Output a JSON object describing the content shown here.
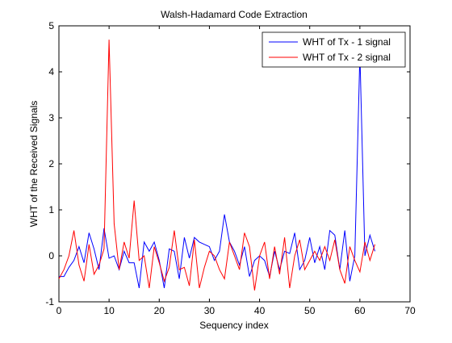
{
  "chart_data": {
    "type": "line",
    "title": "Walsh-Hadamard Code Extraction",
    "xlabel": "Sequency index",
    "ylabel": "WHT of the Received Signals",
    "xlim": [
      0,
      70
    ],
    "ylim": [
      -1,
      5
    ],
    "xticks": [
      0,
      10,
      20,
      30,
      40,
      50,
      60,
      70
    ],
    "yticks": [
      -1,
      0,
      1,
      2,
      3,
      4,
      5
    ],
    "xtick_labels": [
      "0",
      "10",
      "20",
      "30",
      "40",
      "50",
      "60",
      "70"
    ],
    "ytick_labels": [
      "-1",
      "0",
      "1",
      "2",
      "3",
      "4",
      "5"
    ],
    "grid": false,
    "legend_position": "top-right",
    "x": [
      0,
      1,
      2,
      3,
      4,
      5,
      6,
      7,
      8,
      9,
      10,
      11,
      12,
      13,
      14,
      15,
      16,
      17,
      18,
      19,
      20,
      21,
      22,
      23,
      24,
      25,
      26,
      27,
      28,
      29,
      30,
      31,
      32,
      33,
      34,
      35,
      36,
      37,
      38,
      39,
      40,
      41,
      42,
      43,
      44,
      45,
      46,
      47,
      48,
      49,
      50,
      51,
      52,
      53,
      54,
      55,
      56,
      57,
      58,
      59,
      60,
      61,
      62,
      63
    ],
    "series": [
      {
        "name": "WHT of Tx - 1 signal",
        "color": "#0000ff",
        "values": [
          -0.45,
          -0.45,
          -0.25,
          -0.1,
          0.2,
          -0.15,
          0.5,
          0.15,
          -0.3,
          0.6,
          -0.05,
          0.0,
          -0.3,
          0.1,
          -0.15,
          -0.15,
          -0.7,
          0.3,
          0.1,
          0.3,
          -0.1,
          -0.7,
          0.15,
          0.1,
          -0.5,
          0.4,
          -0.05,
          0.4,
          0.3,
          0.25,
          0.2,
          -0.1,
          0.1,
          0.9,
          0.3,
          0.1,
          -0.2,
          0.2,
          -0.45,
          -0.1,
          0.0,
          -0.1,
          -0.45,
          0.1,
          -0.3,
          0.1,
          0.05,
          0.5,
          -0.3,
          -0.1,
          0.4,
          -0.15,
          0.2,
          -0.3,
          0.55,
          0.45,
          -0.3,
          0.55,
          -0.55,
          0.0,
          4.4,
          0.0,
          0.45,
          0.1
        ]
      },
      {
        "name": "WHT of Tx - 2 signal",
        "color": "#ff0000",
        "values": [
          -0.5,
          -0.3,
          0.0,
          0.55,
          -0.2,
          -0.55,
          0.25,
          -0.4,
          -0.2,
          0.15,
          4.7,
          0.7,
          -0.3,
          0.3,
          -0.05,
          1.2,
          -0.1,
          0.0,
          -0.7,
          0.2,
          -0.15,
          -0.55,
          -0.25,
          0.55,
          -0.3,
          -0.25,
          -0.65,
          0.35,
          -0.7,
          -0.25,
          0.1,
          0.0,
          -0.3,
          -0.5,
          0.3,
          0.0,
          -0.3,
          0.5,
          0.2,
          -0.75,
          0.0,
          0.3,
          -0.5,
          0.2,
          -0.4,
          0.4,
          -0.7,
          0.0,
          0.35,
          -0.3,
          -0.1,
          0.1,
          -0.1,
          0.2,
          -0.1,
          0.35,
          -0.3,
          -0.6,
          0.2,
          -0.1,
          -0.35,
          0.3,
          -0.1,
          0.25
        ]
      }
    ]
  }
}
